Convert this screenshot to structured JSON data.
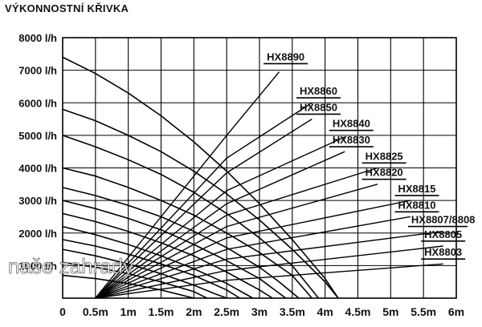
{
  "chart_data": {
    "type": "line",
    "title": "VÝKONNOSTNÍ KŘIVKA",
    "xlabel": "",
    "ylabel": "",
    "x_ticks": [
      "0",
      "0.5m",
      "1m",
      "1.5m",
      "2m",
      "2.5m",
      "3m",
      "3.5m",
      "4m",
      "4.5m",
      "5m",
      "5.5m",
      "6m"
    ],
    "y_ticks": [
      "1000 l/h",
      "2000 l/h",
      "3000 l/h",
      "4000 l/h",
      "5000 l/h",
      "6000 l/h",
      "7000 l/h",
      "8000 l/h"
    ],
    "xlim": [
      0,
      6
    ],
    "ylim": [
      0,
      8000
    ],
    "grid": true,
    "watermark": "naše zahrady",
    "series": [
      {
        "name": "HX8890",
        "label_head": 3.4,
        "label_flow": 7300,
        "curve": [
          [
            0,
            7400
          ],
          [
            0.5,
            6900
          ],
          [
            1,
            6300
          ],
          [
            1.5,
            5600
          ],
          [
            2,
            4800
          ],
          [
            2.5,
            3900
          ],
          [
            3,
            2900
          ],
          [
            3.5,
            1800
          ],
          [
            4,
            600
          ],
          [
            4.2,
            0
          ]
        ],
        "line": [
          [
            0.5,
            0
          ],
          [
            2.5,
            5000
          ],
          [
            3.3,
            6950
          ]
        ]
      },
      {
        "name": "HX8860",
        "label_head": 3.9,
        "label_flow": 6250,
        "curve": [
          [
            0,
            5800
          ],
          [
            0.5,
            5450
          ],
          [
            1,
            5000
          ],
          [
            1.5,
            4500
          ],
          [
            2,
            3900
          ],
          [
            2.5,
            3200
          ],
          [
            3,
            2400
          ],
          [
            3.5,
            1500
          ],
          [
            4,
            500
          ],
          [
            4.2,
            0
          ]
        ],
        "line": [
          [
            0.5,
            0
          ],
          [
            2.5,
            4300
          ],
          [
            3.8,
            6000
          ]
        ]
      },
      {
        "name": "HX8850",
        "label_head": 3.9,
        "label_flow": 5750,
        "curve": [
          [
            0,
            5000
          ],
          [
            0.5,
            4650
          ],
          [
            1,
            4250
          ],
          [
            1.5,
            3800
          ],
          [
            2,
            3250
          ],
          [
            2.5,
            2600
          ],
          [
            3,
            1850
          ],
          [
            3.5,
            1000
          ],
          [
            3.9,
            0
          ]
        ],
        "line": [
          [
            0.5,
            0
          ],
          [
            2.5,
            3850
          ],
          [
            3.8,
            5500
          ]
        ]
      },
      {
        "name": "HX8840",
        "label_head": 4.4,
        "label_flow": 5250,
        "curve": [
          [
            0,
            4000
          ],
          [
            0.5,
            3750
          ],
          [
            1,
            3400
          ],
          [
            1.5,
            3000
          ],
          [
            2,
            2550
          ],
          [
            2.5,
            2000
          ],
          [
            3,
            1400
          ],
          [
            3.5,
            700
          ],
          [
            3.8,
            0
          ]
        ],
        "line": [
          [
            0.5,
            0
          ],
          [
            2.5,
            3300
          ],
          [
            4.3,
            4950
          ]
        ]
      },
      {
        "name": "HX8830",
        "label_head": 4.4,
        "label_flow": 4750,
        "curve": [
          [
            0,
            3400
          ],
          [
            0.5,
            3150
          ],
          [
            1,
            2850
          ],
          [
            1.5,
            2500
          ],
          [
            2,
            2050
          ],
          [
            2.5,
            1550
          ],
          [
            3,
            950
          ],
          [
            3.3,
            500
          ],
          [
            3.6,
            0
          ]
        ],
        "line": [
          [
            0.5,
            0
          ],
          [
            2.5,
            2900
          ],
          [
            4.3,
            4500
          ]
        ]
      },
      {
        "name": "HX8825",
        "label_head": 4.9,
        "label_flow": 4250,
        "curve": [
          [
            0,
            3000
          ],
          [
            0.5,
            2750
          ],
          [
            1,
            2450
          ],
          [
            1.5,
            2100
          ],
          [
            2,
            1650
          ],
          [
            2.5,
            1150
          ],
          [
            3,
            600
          ],
          [
            3.4,
            0
          ]
        ],
        "line": [
          [
            0.5,
            0
          ],
          [
            2.5,
            2550
          ],
          [
            4.8,
            4000
          ]
        ]
      },
      {
        "name": "HX8820",
        "label_head": 4.9,
        "label_flow": 3750,
        "curve": [
          [
            0,
            2600
          ],
          [
            0.5,
            2350
          ],
          [
            1,
            2050
          ],
          [
            1.5,
            1700
          ],
          [
            2,
            1300
          ],
          [
            2.5,
            800
          ],
          [
            3,
            250
          ],
          [
            3.2,
            0
          ]
        ],
        "line": [
          [
            0.5,
            0
          ],
          [
            2.5,
            2200
          ],
          [
            4.8,
            3500
          ]
        ]
      },
      {
        "name": "HX8815",
        "label_head": 5.4,
        "label_flow": 3250,
        "curve": [
          [
            0,
            2200
          ],
          [
            0.5,
            1950
          ],
          [
            1,
            1650
          ],
          [
            1.5,
            1300
          ],
          [
            2,
            900
          ],
          [
            2.5,
            450
          ],
          [
            2.9,
            0
          ]
        ],
        "line": [
          [
            0.5,
            0
          ],
          [
            2.5,
            1850
          ],
          [
            5.3,
            3000
          ]
        ]
      },
      {
        "name": "HX8810",
        "label_head": 5.4,
        "label_flow": 2750,
        "curve": [
          [
            0,
            1800
          ],
          [
            0.5,
            1600
          ],
          [
            1,
            1350
          ],
          [
            1.5,
            1050
          ],
          [
            2,
            700
          ],
          [
            2.5,
            250
          ],
          [
            2.7,
            0
          ]
        ],
        "line": [
          [
            0.5,
            0
          ],
          [
            2.5,
            1500
          ],
          [
            5.3,
            2500
          ]
        ]
      },
      {
        "name": "HX8807/8808",
        "label_head": 5.8,
        "label_flow": 2300,
        "curve": [
          [
            0,
            1500
          ],
          [
            0.5,
            1300
          ],
          [
            1,
            1050
          ],
          [
            1.5,
            750
          ],
          [
            2,
            400
          ],
          [
            2.3,
            150
          ],
          [
            2.5,
            0
          ]
        ],
        "line": [
          [
            0.5,
            0
          ],
          [
            2.5,
            1200
          ],
          [
            5.8,
            2050
          ]
        ]
      },
      {
        "name": "HX8805",
        "label_head": 5.8,
        "label_flow": 1850,
        "curve": [
          [
            0,
            1100
          ],
          [
            0.5,
            950
          ],
          [
            1,
            750
          ],
          [
            1.5,
            500
          ],
          [
            2,
            200
          ],
          [
            2.2,
            0
          ]
        ],
        "line": [
          [
            0.5,
            0
          ],
          [
            2.5,
            850
          ],
          [
            5.8,
            1600
          ]
        ]
      },
      {
        "name": "HX8803",
        "label_head": 5.8,
        "label_flow": 1300,
        "curve": [
          [
            0,
            700
          ],
          [
            0.5,
            600
          ],
          [
            1,
            450
          ],
          [
            1.5,
            250
          ],
          [
            2,
            0
          ]
        ],
        "line": [
          [
            0.5,
            0
          ],
          [
            2.5,
            550
          ],
          [
            5.8,
            1050
          ]
        ]
      }
    ]
  }
}
